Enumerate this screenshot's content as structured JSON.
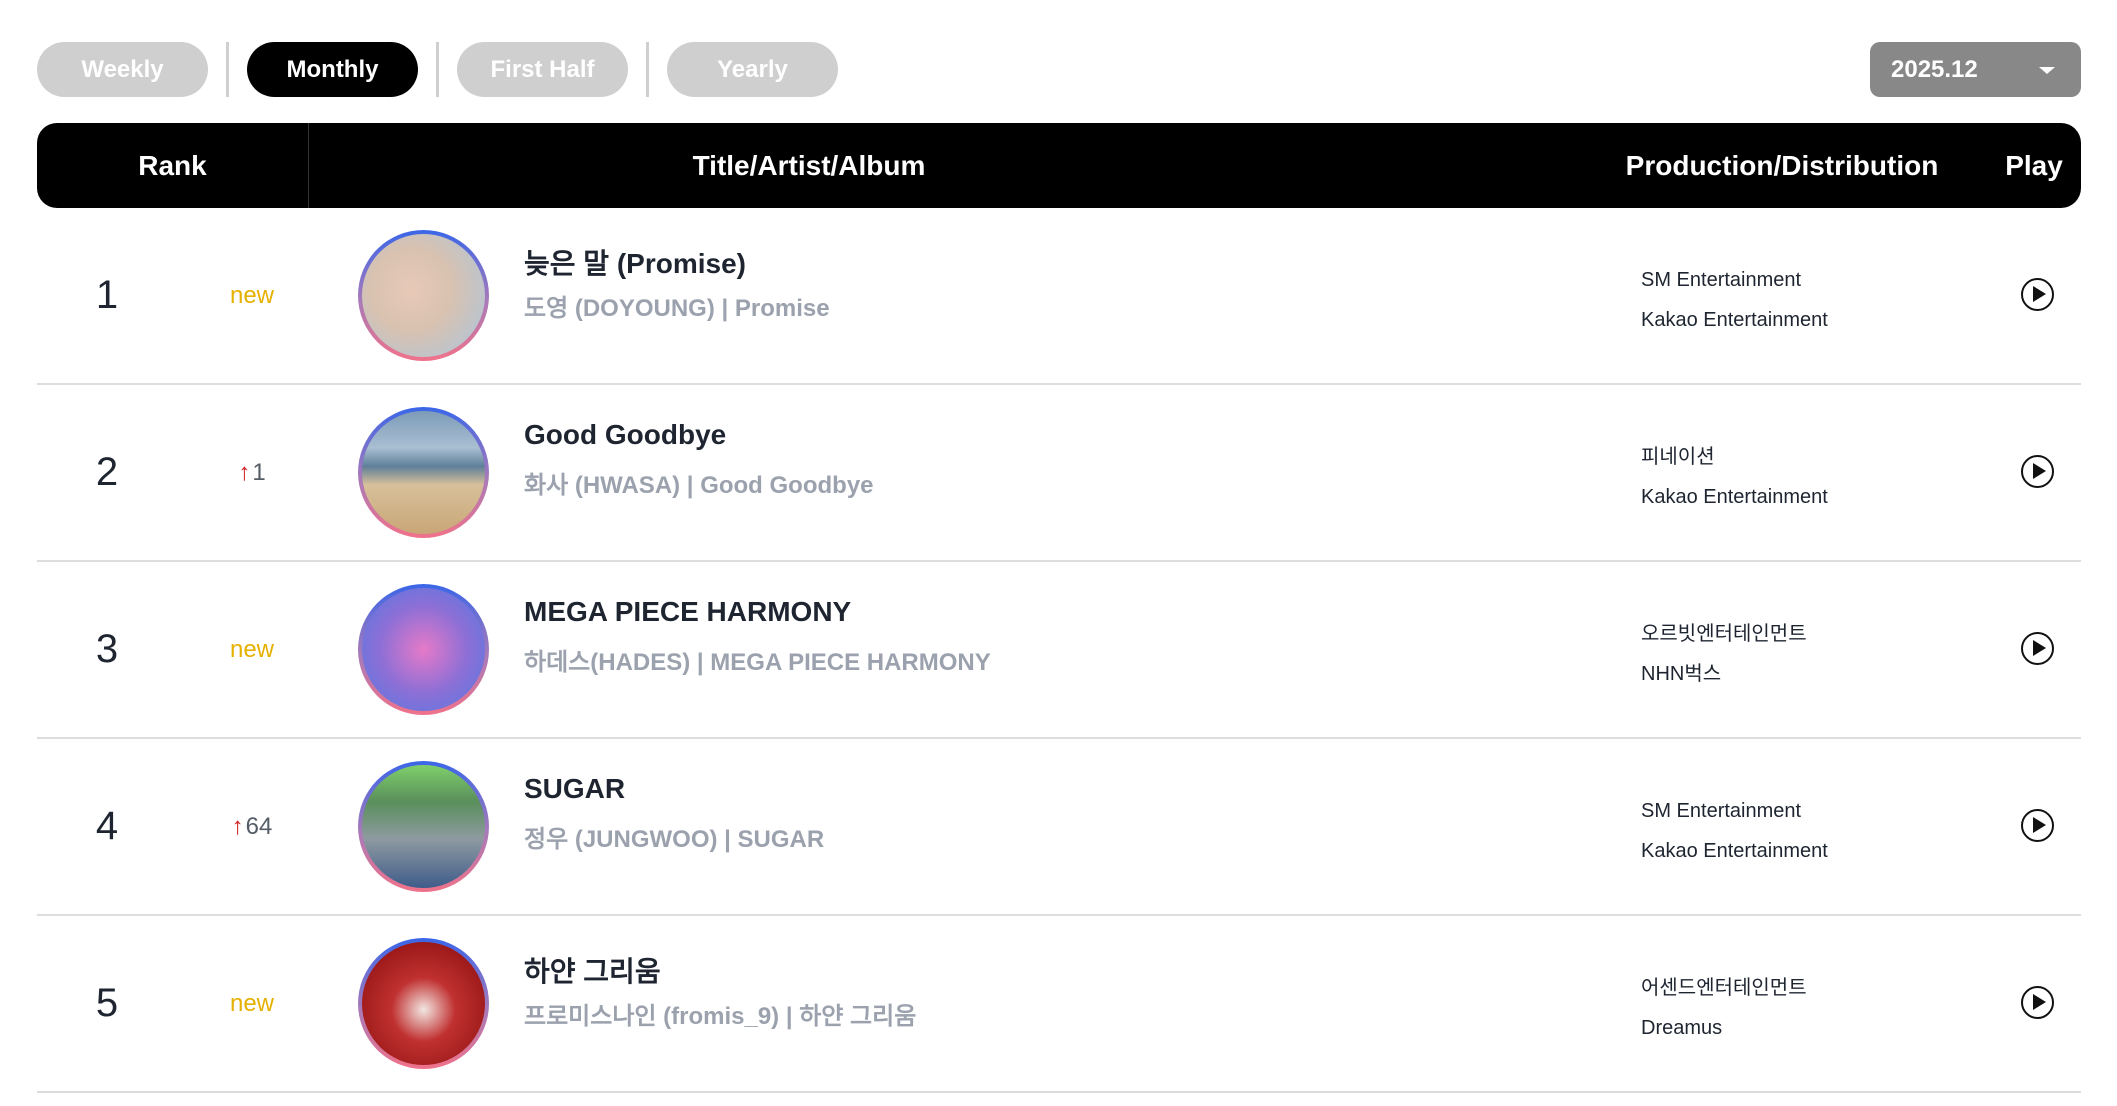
{
  "tabs": [
    {
      "label": "Weekly",
      "active": false
    },
    {
      "label": "Monthly",
      "active": true
    },
    {
      "label": "First Half",
      "active": false
    },
    {
      "label": "Yearly",
      "active": false
    }
  ],
  "period_select": {
    "value": "2025.12"
  },
  "table": {
    "headers": {
      "rank": "Rank",
      "title": "Title/Artist/Album",
      "production": "Production/Distribution",
      "play": "Play"
    },
    "rows": [
      {
        "rank": "1",
        "change": "new",
        "change_type": "new",
        "title": "늦은 말 (Promise)",
        "subtitle": "도영 (DOYOUNG) | Promise",
        "production": "SM Entertainment",
        "distribution": "Kakao Entertainment"
      },
      {
        "rank": "2",
        "change": "1",
        "change_type": "up",
        "title": "Good Goodbye",
        "subtitle": "화사 (HWASA) | Good Goodbye",
        "production": "피네이션",
        "distribution": "Kakao Entertainment"
      },
      {
        "rank": "3",
        "change": "new",
        "change_type": "new",
        "title": "MEGA PIECE HARMONY",
        "subtitle": "하데스(HADES) | MEGA PIECE HARMONY",
        "production": "오르빗엔터테인먼트",
        "distribution": "NHN벅스"
      },
      {
        "rank": "4",
        "change": "64",
        "change_type": "up",
        "title": "SUGAR",
        "subtitle": "정우 (JUNGWOO) | SUGAR",
        "production": "SM Entertainment",
        "distribution": "Kakao Entertainment"
      },
      {
        "rank": "5",
        "change": "new",
        "change_type": "new",
        "title": "하얀 그리움",
        "subtitle": "프로미스나인 (fromis_9) | 하얀 그리움",
        "production": "어센드엔터테인먼트",
        "distribution": "Dreamus"
      }
    ]
  },
  "colors": {
    "new": "#e6b000",
    "up_arrow": "#d02020",
    "active_tab": "#000000",
    "inactive_tab": "#cfcfcf"
  }
}
